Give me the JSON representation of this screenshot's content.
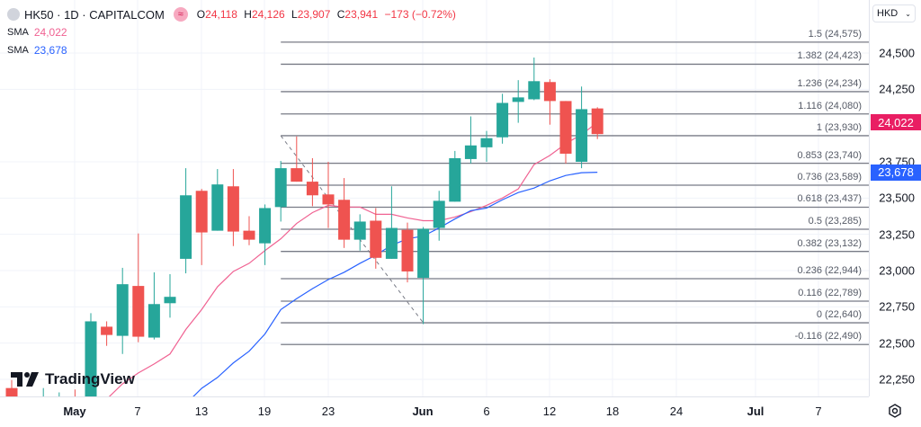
{
  "header": {
    "symbol": "HK50 · 1D · CAPITALCOM",
    "badge_icon": "≈",
    "open_label": "O",
    "open": "24,118",
    "high_label": "H",
    "high": "24,126",
    "low_label": "L",
    "low": "23,907",
    "close_label": "C",
    "close": "23,941",
    "change": "−173 (−0.72%)"
  },
  "indicators": [
    {
      "name": "SMA",
      "value": "24,022",
      "color": "#f06292"
    },
    {
      "name": "SMA",
      "value": "23,678",
      "color": "#2962ff"
    }
  ],
  "currency_button": "HKD",
  "logo_text": "TradingView",
  "chart_data": {
    "type": "candlestick",
    "title": "HK50 · 1D · CAPITALCOM",
    "ylim": [
      22200,
      24650
    ],
    "y_ticks": [
      "24,500",
      "24,250",
      "23,750",
      "23,500",
      "23,250",
      "23,000",
      "22,750",
      "22,500",
      "22,250"
    ],
    "y_tick_values": [
      24500,
      24250,
      23750,
      23500,
      23250,
      23000,
      22750,
      22500,
      22250
    ],
    "x_ticks": [
      "May",
      "7",
      "13",
      "19",
      "23",
      "Jun",
      "6",
      "12",
      "18",
      "24",
      "Jul",
      "7"
    ],
    "candles": [
      {
        "i": 0,
        "o": 22190,
        "h": 22245,
        "l": 22000,
        "c": 22050
      },
      {
        "i": 2,
        "o": 21950,
        "h": 22190,
        "l": 21900,
        "c": 22100
      },
      {
        "i": 3,
        "o": 21950,
        "h": 22160,
        "l": 21900,
        "c": 22100
      },
      {
        "i": 4,
        "o": 22130,
        "h": 22180,
        "l": 21950,
        "c": 22000
      },
      {
        "i": 5,
        "o": 22100,
        "h": 22706,
        "l": 22050,
        "c": 22650
      },
      {
        "i": 6,
        "o": 22613,
        "h": 22650,
        "l": 22481,
        "c": 22556
      },
      {
        "i": 7,
        "o": 22550,
        "h": 23019,
        "l": 22425,
        "c": 22906
      },
      {
        "i": 8,
        "o": 22894,
        "h": 23256,
        "l": 22506,
        "c": 22544
      },
      {
        "i": 9,
        "o": 22538,
        "h": 22988,
        "l": 22525,
        "c": 22769
      },
      {
        "i": 10,
        "o": 22775,
        "h": 22975,
        "l": 22675,
        "c": 22819
      },
      {
        "i": 11,
        "o": 23081,
        "h": 23706,
        "l": 22981,
        "c": 23519
      },
      {
        "i": 12,
        "o": 23550,
        "h": 23563,
        "l": 23038,
        "c": 23263
      },
      {
        "i": 13,
        "o": 23275,
        "h": 23700,
        "l": 23275,
        "c": 23594
      },
      {
        "i": 14,
        "o": 23581,
        "h": 23700,
        "l": 23169,
        "c": 23269
      },
      {
        "i": 15,
        "o": 23275,
        "h": 23375,
        "l": 23175,
        "c": 23213
      },
      {
        "i": 16,
        "o": 23188,
        "h": 23456,
        "l": 23038,
        "c": 23431
      },
      {
        "i": 17,
        "o": 23438,
        "h": 23756,
        "l": 23338,
        "c": 23706
      },
      {
        "i": 18,
        "o": 23706,
        "h": 23925,
        "l": 23613,
        "c": 23613
      },
      {
        "i": 19,
        "o": 23613,
        "h": 23775,
        "l": 23444,
        "c": 23519
      },
      {
        "i": 20,
        "o": 23525,
        "h": 23750,
        "l": 23294,
        "c": 23456
      },
      {
        "i": 21,
        "o": 23488,
        "h": 23638,
        "l": 23156,
        "c": 23213
      },
      {
        "i": 22,
        "o": 23213,
        "h": 23388,
        "l": 23138,
        "c": 23338
      },
      {
        "i": 23,
        "o": 23344,
        "h": 23431,
        "l": 23013,
        "c": 23088
      },
      {
        "i": 24,
        "o": 23081,
        "h": 23581,
        "l": 23081,
        "c": 23294
      },
      {
        "i": 25,
        "o": 23281,
        "h": 23331,
        "l": 22919,
        "c": 22994
      },
      {
        "i": 26,
        "o": 22950,
        "h": 23300,
        "l": 22631,
        "c": 23288
      },
      {
        "i": 27,
        "o": 23294,
        "h": 23550,
        "l": 23206,
        "c": 23481
      },
      {
        "i": 28,
        "o": 23475,
        "h": 23825,
        "l": 23475,
        "c": 23775
      },
      {
        "i": 29,
        "o": 23769,
        "h": 24063,
        "l": 23738,
        "c": 23863
      },
      {
        "i": 30,
        "o": 23850,
        "h": 23963,
        "l": 23750,
        "c": 23913
      },
      {
        "i": 31,
        "o": 23919,
        "h": 24219,
        "l": 23875,
        "c": 24156
      },
      {
        "i": 32,
        "o": 24163,
        "h": 24313,
        "l": 24019,
        "c": 24194
      },
      {
        "i": 33,
        "o": 24181,
        "h": 24469,
        "l": 24175,
        "c": 24306
      },
      {
        "i": 34,
        "o": 24300,
        "h": 24319,
        "l": 24006,
        "c": 24169
      },
      {
        "i": 35,
        "o": 24169,
        "h": 24169,
        "l": 23738,
        "c": 23806
      },
      {
        "i": 36,
        "o": 23750,
        "h": 24269,
        "l": 23706,
        "c": 24113
      },
      {
        "i": 37,
        "o": 24118,
        "h": 24126,
        "l": 23907,
        "c": 23941
      }
    ],
    "series": [
      {
        "name": "SMA 24,022",
        "color": "#f06292",
        "start": 6,
        "values": [
          22113,
          22219,
          22294,
          22356,
          22425,
          22594,
          22731,
          22888,
          22994,
          23050,
          23138,
          23219,
          23325,
          23400,
          23450,
          23438,
          23438,
          23388,
          23388,
          23363,
          23344,
          23344,
          23369,
          23406,
          23450,
          23500,
          23563,
          23731,
          23794,
          23875,
          23938,
          24022
        ]
      },
      {
        "name": "SMA 23,678",
        "color": "#2962ff",
        "start": 11,
        "values": [
          22080,
          22188,
          22263,
          22363,
          22444,
          22563,
          22731,
          22806,
          22875,
          22938,
          22988,
          23050,
          23106,
          23175,
          23219,
          23238,
          23294,
          23356,
          23413,
          23431,
          23488,
          23538,
          23569,
          23619,
          23656,
          23675,
          23678
        ]
      }
    ],
    "fibonacci": {
      "from": {
        "i": 17,
        "price": 23930
      },
      "to": {
        "i": 26,
        "price": 22640
      },
      "levels": [
        {
          "label": "1.5 (24,575)",
          "price": 24575
        },
        {
          "label": "1.382 (24,423)",
          "price": 24423
        },
        {
          "label": "1.236 (24,234)",
          "price": 24234
        },
        {
          "label": "1.116 (24,080)",
          "price": 24080
        },
        {
          "label": "1 (23,930)",
          "price": 23930
        },
        {
          "label": "0.853 (23,740)",
          "price": 23740
        },
        {
          "label": "0.736 (23,589)",
          "price": 23589
        },
        {
          "label": "0.618 (23,437)",
          "price": 23437
        },
        {
          "label": "0.5 (23,285)",
          "price": 23285
        },
        {
          "label": "0.382 (23,132)",
          "price": 23132
        },
        {
          "label": "0.236 (22,944)",
          "price": 22944
        },
        {
          "label": "0.116 (22,789)",
          "price": 22789
        },
        {
          "label": "0 (22,640)",
          "price": 22640
        },
        {
          "label": "-0.116 (22,490)",
          "price": 22490
        }
      ]
    },
    "last_price_tags": [
      {
        "value": "24,022",
        "price": 24022,
        "color": "#e91e63"
      },
      {
        "value": "23,678",
        "price": 23678,
        "color": "#2962ff"
      }
    ],
    "up_color": "#26a69a",
    "down_color": "#ef5350",
    "grid": true
  }
}
